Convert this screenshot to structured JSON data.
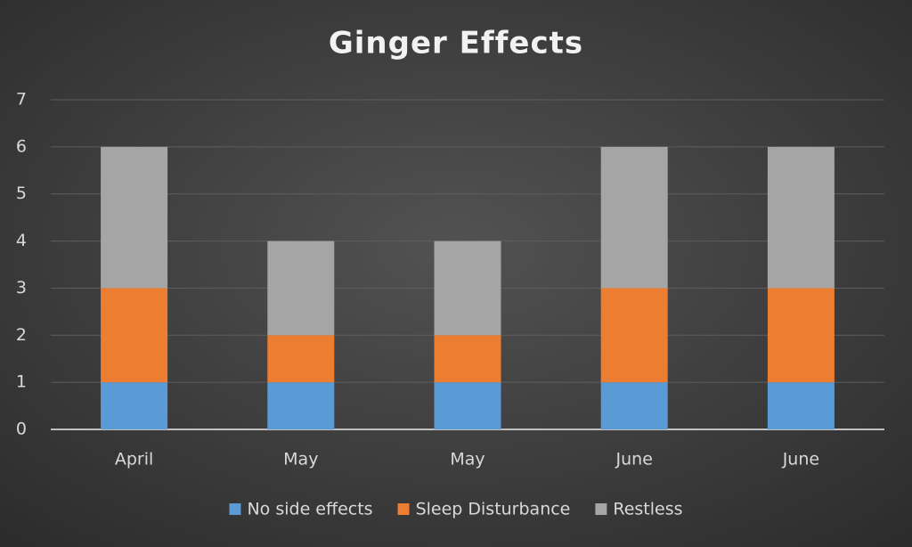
{
  "chart_data": {
    "type": "bar",
    "stacked": true,
    "title": "Ginger Effects",
    "categories": [
      "April",
      "May",
      "May",
      "June",
      "June"
    ],
    "series": [
      {
        "name": "No side effects",
        "color": "#5b9bd5",
        "values": [
          1,
          1,
          1,
          1,
          1
        ]
      },
      {
        "name": "Sleep Disturbance",
        "color": "#ed7d31",
        "values": [
          2,
          1,
          1,
          2,
          2
        ]
      },
      {
        "name": "Restless",
        "color": "#a5a5a5",
        "values": [
          3,
          2,
          2,
          3,
          3
        ]
      }
    ],
    "ylim": [
      0,
      7
    ],
    "yticks": [
      0,
      1,
      2,
      3,
      4,
      5,
      6,
      7
    ],
    "grid": true,
    "legend": "bottom"
  }
}
